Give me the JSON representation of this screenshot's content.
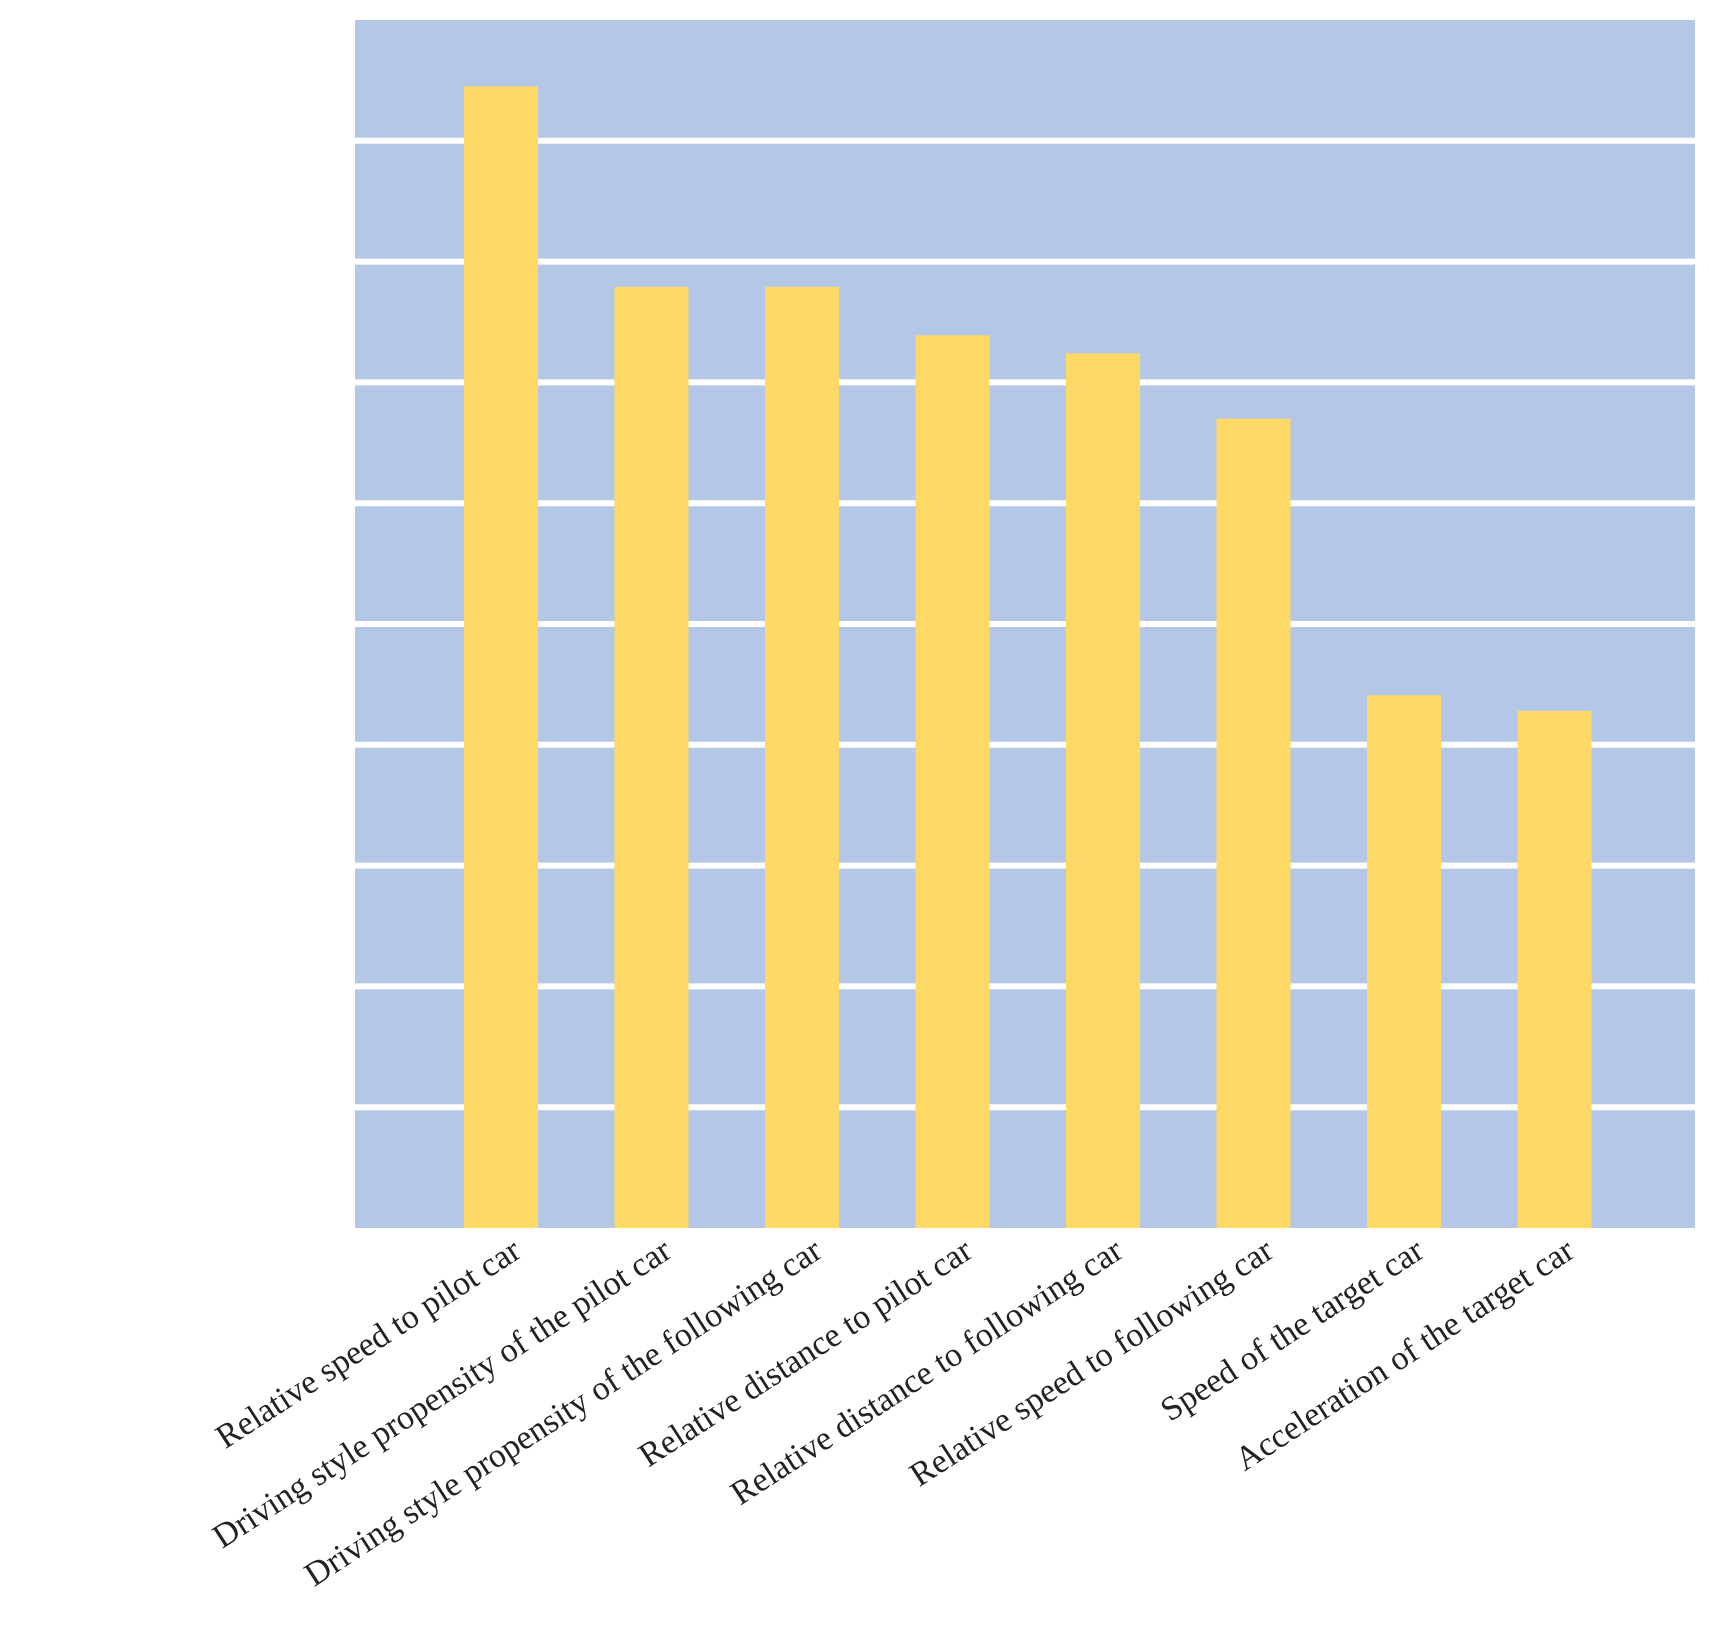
{
  "chart_data": {
    "type": "bar",
    "categories": [
      "Relative speed to pilot car",
      "Driving style propensity of the pilot car",
      "Driving style propensity of the following car",
      "Relative distance to pilot car",
      "Relative distance to following car",
      "Relative speed to following car",
      "Speed of the target car",
      "Acceleration of the target car"
    ],
    "values": [
      9.45,
      7.79,
      7.79,
      7.39,
      7.24,
      6.7,
      4.41,
      4.28
    ],
    "ylim": [
      0,
      10
    ],
    "grid": true,
    "title": "",
    "xlabel": "",
    "ylabel": "",
    "colors": {
      "plot_background": "#b4c7e7",
      "bar": "#ffd966",
      "grid": "#ffffff"
    }
  }
}
